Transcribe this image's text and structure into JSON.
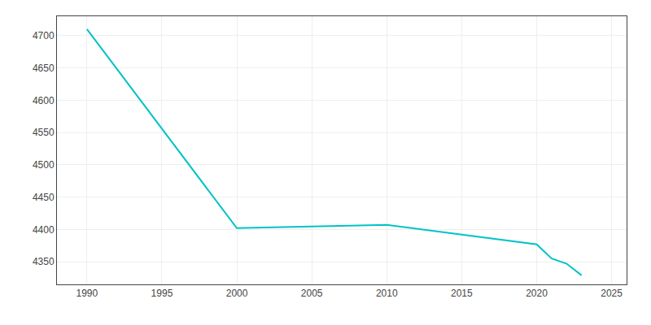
{
  "chart_data": {
    "type": "line",
    "x": [
      1990,
      2000,
      2010,
      2020,
      2021,
      2022,
      2023
    ],
    "values": [
      4710,
      4402,
      4407,
      4377,
      4355,
      4347,
      4329
    ],
    "color": "#00c2c7",
    "xlim": [
      1988,
      2026
    ],
    "ylim": [
      4315,
      4730
    ],
    "xticks": [
      1990,
      1995,
      2000,
      2005,
      2010,
      2015,
      2020,
      2025
    ],
    "yticks": [
      4350,
      4400,
      4450,
      4500,
      4550,
      4600,
      4650,
      4700
    ],
    "grid": true
  }
}
